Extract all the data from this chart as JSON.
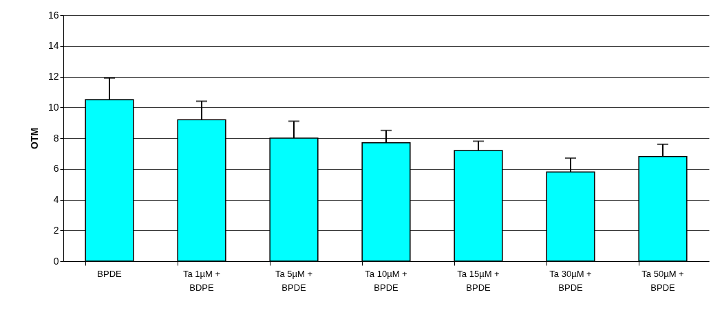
{
  "chart_data": {
    "type": "bar",
    "ylabel": "OTM",
    "categories": [
      "BPDE",
      "Ta 1µM + BDPE",
      "Ta 5µM + BPDE",
      "Ta 10µM + BPDE",
      "Ta 15µM + BPDE",
      "Ta 30µM + BPDE",
      "Ta 50µM + BPDE"
    ],
    "values": [
      10.5,
      9.2,
      8.0,
      7.7,
      7.2,
      5.8,
      6.8
    ],
    "errors": [
      [
        10.5,
        11.9
      ],
      [
        9.2,
        10.4
      ],
      [
        8.0,
        9.1
      ],
      [
        7.7,
        8.5
      ],
      [
        7.2,
        7.8
      ],
      [
        5.8,
        6.7
      ],
      [
        6.8,
        7.6
      ]
    ],
    "color": "#00ffff",
    "ylim": [
      0,
      16
    ],
    "yticks": [
      0,
      2,
      4,
      6,
      8,
      10,
      12,
      14,
      16
    ],
    "grid": "y"
  }
}
